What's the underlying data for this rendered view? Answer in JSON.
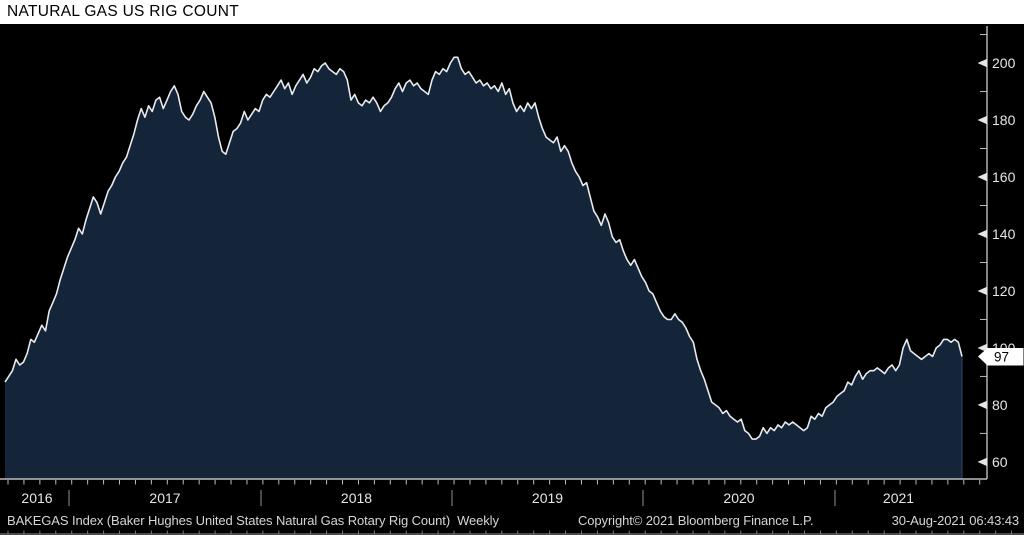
{
  "title": "NATURAL GAS US RIG COUNT",
  "footer": {
    "security_info": "BAKEGAS Index (Baker Hughes United States Natural Gas Rotary Rig Count)  Weekly",
    "copyright": "Copyright© 2021 Bloomberg Finance L.P.",
    "datetime": "30-Aug-2021 06:43:43"
  },
  "colors": {
    "background": "#000000",
    "titlebar_bg": "#ffffff",
    "titlebar_text": "#000000",
    "area_fill": "#142439",
    "area_edge": "#2a3c58",
    "line": "#e8ebee",
    "axis": "#bdbdbd",
    "tick_label": "#e6e6e6",
    "year_separator": "#909090",
    "footer_text": "#d6d6d6",
    "bottom_strip": "#7a7a7a",
    "last_value_bg": "#ffffff",
    "last_value_text": "#000000"
  },
  "chart_data": {
    "type": "area",
    "title": "NATURAL GAS US RIG COUNT",
    "series_name": "BAKEGAS Index (Baker Hughes United States Natural Gas Rotary Rig Count)",
    "frequency": "Weekly",
    "x_range": [
      "Sep-2016",
      "30-Aug-2021"
    ],
    "x_tick_labels": [
      "2016",
      "2017",
      "2018",
      "2019",
      "2020",
      "2021"
    ],
    "y_ticks": [
      60,
      80,
      100,
      120,
      140,
      160,
      180,
      200
    ],
    "y_minor_ticks": [
      70,
      90,
      110,
      130,
      150,
      170,
      190,
      210
    ],
    "ylim": [
      54,
      213
    ],
    "grid": false,
    "legend": false,
    "last_value": 97,
    "last_value_label": "97",
    "series": [
      {
        "name": "BAKEGAS Index",
        "values": [
          88,
          90,
          92,
          96,
          94,
          95,
          98,
          103,
          102,
          105,
          108,
          106,
          113,
          116,
          119,
          124,
          128,
          132,
          135,
          138,
          142,
          140,
          145,
          149,
          153,
          151,
          147,
          151,
          155,
          157,
          160,
          162,
          165,
          167,
          171,
          175,
          180,
          184,
          181,
          185,
          183,
          187,
          188,
          184,
          187,
          190,
          192,
          189,
          183,
          181,
          180,
          182,
          185,
          187,
          190,
          188,
          186,
          181,
          174,
          169,
          168,
          172,
          176,
          177,
          179,
          183,
          180,
          182,
          184,
          183,
          187,
          189,
          188,
          190,
          192,
          194,
          191,
          193,
          189,
          192,
          194,
          196,
          193,
          195,
          198,
          197,
          199,
          200,
          198,
          197,
          196,
          198,
          197,
          194,
          187,
          189,
          186,
          185,
          187,
          186,
          188,
          186,
          183,
          185,
          186,
          188,
          191,
          193,
          190,
          193,
          194,
          192,
          193,
          191,
          190,
          189,
          194,
          197,
          196,
          198,
          197,
          200,
          202,
          202,
          198,
          196,
          197,
          195,
          193,
          194,
          192,
          193,
          191,
          192,
          190,
          193,
          189,
          191,
          186,
          183,
          185,
          183,
          186,
          184,
          186,
          181,
          177,
          174,
          173,
          172,
          174,
          169,
          171,
          169,
          165,
          162,
          160,
          157,
          158,
          153,
          148,
          146,
          143,
          147,
          144,
          139,
          137,
          138,
          134,
          131,
          129,
          131,
          128,
          125,
          123,
          120,
          119,
          116,
          113,
          111,
          110,
          110,
          112,
          110,
          109,
          107,
          104,
          102,
          96,
          92,
          89,
          85,
          81,
          80,
          79,
          77,
          78,
          76,
          75,
          74,
          75,
          71,
          70,
          68,
          68,
          69,
          72,
          70,
          72,
          71,
          73,
          72,
          74,
          73,
          74,
          73,
          72,
          71,
          72,
          76,
          75,
          77,
          76,
          79,
          80,
          81,
          83,
          84,
          85,
          88,
          87,
          90,
          92,
          89,
          91,
          92,
          92,
          93,
          92,
          91,
          93,
          94,
          92,
          94,
          100,
          103,
          99,
          98,
          97,
          96,
          97,
          98,
          97,
          100,
          101,
          103,
          103,
          102,
          103,
          102,
          97
        ]
      }
    ]
  }
}
